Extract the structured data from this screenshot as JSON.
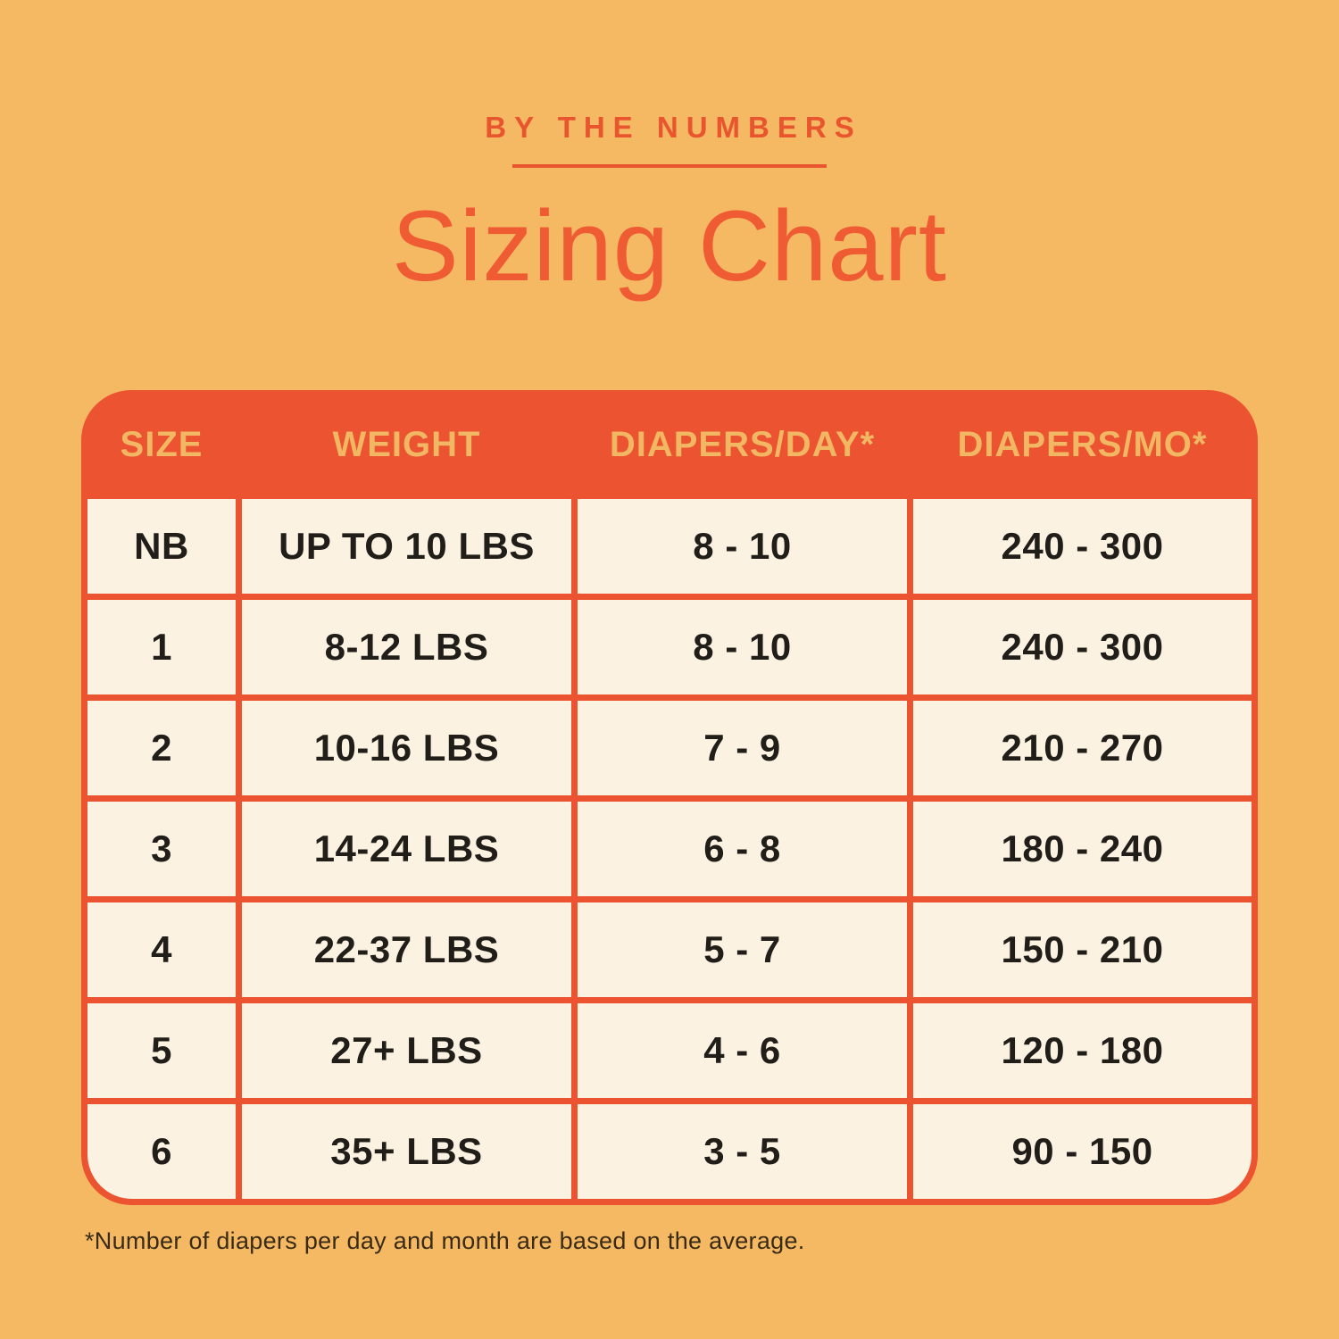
{
  "colors": {
    "page_background": "#F5B963",
    "accent_orange_red": "#E8552E",
    "title_orange": "#EF5B33",
    "table_header_bg": "#EC5330",
    "table_border": "#E1532F",
    "table_body_bg": "#FBF2E2",
    "header_text": "#F2B763",
    "body_text": "#211E1A",
    "footnote_text": "#392B16"
  },
  "header": {
    "eyebrow": "BY THE NUMBERS",
    "title": "Sizing Chart"
  },
  "table": {
    "columns": [
      "SIZE",
      "WEIGHT",
      "DIAPERS/DAY*",
      "DIAPERS/MO*"
    ],
    "rows": [
      {
        "size": "NB",
        "weight": "UP TO 10 LBS",
        "per_day": "8 - 10",
        "per_month": "240 - 300"
      },
      {
        "size": "1",
        "weight": "8-12 LBS",
        "per_day": "8 - 10",
        "per_month": "240 - 300"
      },
      {
        "size": "2",
        "weight": "10-16 LBS",
        "per_day": "7 - 9",
        "per_month": "210 - 270"
      },
      {
        "size": "3",
        "weight": "14-24 LBS",
        "per_day": "6 - 8",
        "per_month": "180 - 240"
      },
      {
        "size": "4",
        "weight": "22-37 LBS",
        "per_day": "5 - 7",
        "per_month": "150 - 210"
      },
      {
        "size": "5",
        "weight": "27+ LBS",
        "per_day": "4 - 6",
        "per_month": "120 - 180"
      },
      {
        "size": "6",
        "weight": "35+ LBS",
        "per_day": "3 - 5",
        "per_month": "90 - 150"
      }
    ]
  },
  "footnote": "*Number of diapers per day and month are based on the average.",
  "chart_data": {
    "type": "table",
    "subtitle": "BY THE NUMBERS",
    "title": "Sizing Chart",
    "columns": [
      "SIZE",
      "WEIGHT",
      "DIAPERS/DAY*",
      "DIAPERS/MO*"
    ],
    "rows": [
      [
        "NB",
        "UP TO 10 LBS",
        "8 - 10",
        "240 - 300"
      ],
      [
        "1",
        "8-12 LBS",
        "8 - 10",
        "240 - 300"
      ],
      [
        "2",
        "10-16 LBS",
        "7 - 9",
        "210 - 270"
      ],
      [
        "3",
        "14-24 LBS",
        "6 - 8",
        "180 - 240"
      ],
      [
        "4",
        "22-37 LBS",
        "5 - 7",
        "150 - 210"
      ],
      [
        "5",
        "27+ LBS",
        "4 - 6",
        "120 - 180"
      ],
      [
        "6",
        "35+ LBS",
        "3 - 5",
        "90 - 150"
      ]
    ],
    "footnote": "*Number of diapers per day and month are based on the average."
  }
}
